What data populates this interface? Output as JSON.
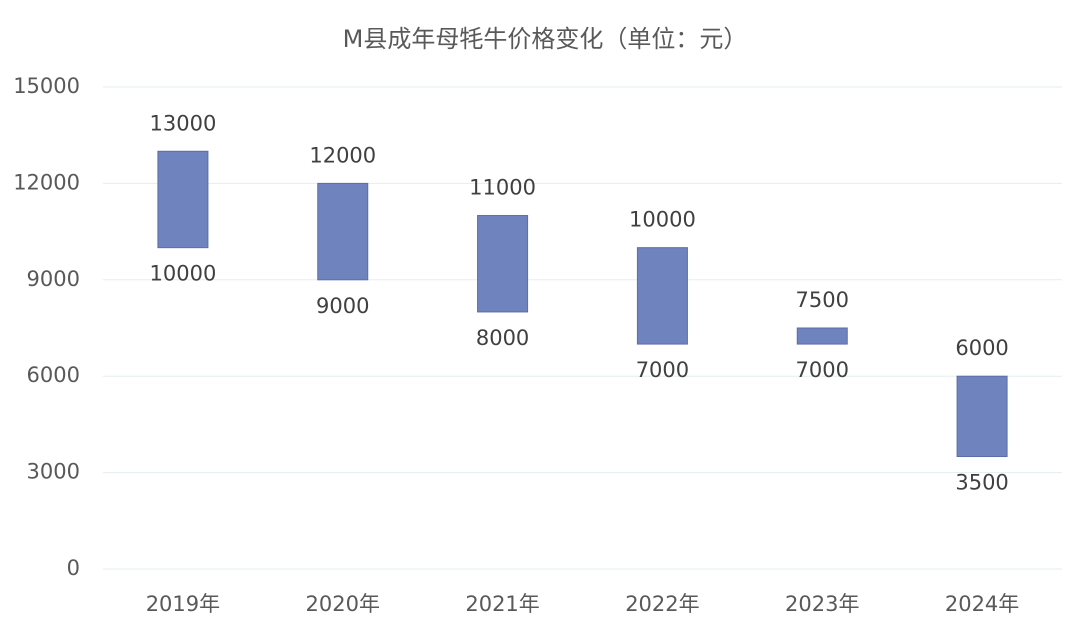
{
  "chart_data": {
    "type": "floating-bar",
    "title": "M县成年母牦牛价格变化（单位：元）",
    "categories": [
      "2019年",
      "2020年",
      "2021年",
      "2022年",
      "2023年",
      "2024年"
    ],
    "low": [
      10000,
      9000,
      8000,
      7000,
      7000,
      3500
    ],
    "high": [
      13000,
      12000,
      11000,
      10000,
      7500,
      6000
    ],
    "color": "#6f83bf",
    "ylim": [
      0,
      15000
    ],
    "yticks": [
      0,
      3000,
      6000,
      9000,
      12000,
      15000
    ],
    "grid": true
  }
}
